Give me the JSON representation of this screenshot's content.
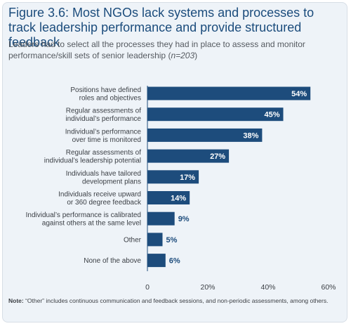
{
  "title": "Figure 3.6: Most NGOs lack systems and processes to track leadership performance and provide structured feedback",
  "subtitle_main": "Leaders had to select all the processes they had in place to assess and monitor performance/skill sets of senior leadership (",
  "subtitle_n": "n=203",
  "subtitle_close": ")",
  "note_label": "Note:",
  "note_text": " “Other” includes continuous communication and feedback sessions, and non-periodic assessments, among others.",
  "colors": {
    "bar": "#1d4c7c",
    "label_inside": "#ffffff",
    "label_outside": "#1d4c7c",
    "panel_bg": "#eef3f8",
    "title": "#1b4c7c"
  },
  "chart_data": {
    "type": "bar",
    "orientation": "horizontal",
    "categories": [
      [
        "Positions have defined",
        "roles and objectives"
      ],
      [
        "Regular assessments of",
        "individual’s performance"
      ],
      [
        "Individual’s performance",
        "over time is monitored"
      ],
      [
        "Regular assessments of",
        "individual’s leadership potential"
      ],
      [
        "Individuals have tailored",
        "development plans"
      ],
      [
        "Individuals receive upward",
        "or 360 degree feedback"
      ],
      [
        "Individual’s performance is calibrated",
        "against others at the same level"
      ],
      [
        "Other"
      ],
      [
        "None of the above"
      ]
    ],
    "values": [
      54,
      45,
      38,
      27,
      17,
      14,
      9,
      5,
      6
    ],
    "value_labels": [
      "54%",
      "45%",
      "38%",
      "27%",
      "17%",
      "14%",
      "9%",
      "5%",
      "6%"
    ],
    "xlim": [
      0,
      60
    ],
    "xticks": [
      0,
      20,
      40,
      60
    ],
    "xtick_labels": [
      "0",
      "20%",
      "40%",
      "60%"
    ],
    "grid": false
  }
}
